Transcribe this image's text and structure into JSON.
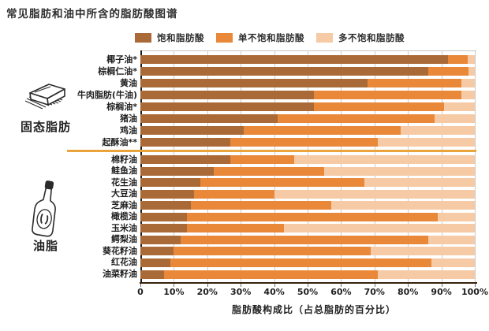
{
  "chart_data": {
    "type": "bar",
    "orientation": "horizontal",
    "stacked": true,
    "title": "常见脂肪和油中所含的脂肪酸图谱",
    "xlabel": "脂肪酸构成比（占总脂肪的百分比）",
    "xlim": [
      0,
      100
    ],
    "x_ticks": [
      "0",
      "10%",
      "20%",
      "30%",
      "40%",
      "50%",
      "60%",
      "70%",
      "80%",
      "90%",
      "100%"
    ],
    "grid": "vertical-gray-lines",
    "legend_position": "top",
    "series_names": [
      "饱和脂肪酸",
      "单不饱和脂肪酸",
      "多不饱和脂肪酸"
    ],
    "series_colors": [
      "#A96A38",
      "#E98838",
      "#F5CAA5"
    ],
    "divider_color": "#E9A43C",
    "groups": [
      {
        "group": "固态脂肪",
        "icon": "butter-stick-icon",
        "rows": [
          {
            "label": "椰子油*",
            "values": [
              92,
              6,
              2
            ]
          },
          {
            "label": "棕榈仁油*",
            "values": [
              86,
              12,
              2
            ]
          },
          {
            "label": "黄油",
            "values": [
              68,
              28,
              4
            ]
          },
          {
            "label": "牛肉脂肪(牛油)",
            "values": [
              52,
              44,
              4
            ]
          },
          {
            "label": "棕榈油*",
            "values": [
              52,
              39,
              9
            ]
          },
          {
            "label": "猪油",
            "values": [
              41,
              47,
              12
            ]
          },
          {
            "label": "鸡油",
            "values": [
              31,
              47,
              22
            ]
          },
          {
            "label": "起酥油**",
            "values": [
              27,
              44,
              29
            ]
          }
        ]
      },
      {
        "group": "油脂",
        "icon": "oil-bottle-icon",
        "rows": [
          {
            "label": "棉籽油",
            "values": [
              27,
              19,
              54
            ]
          },
          {
            "label": "鲑鱼油",
            "values": [
              22,
              33,
              45
            ]
          },
          {
            "label": "花生油",
            "values": [
              18,
              49,
              33
            ]
          },
          {
            "label": "大豆油",
            "values": [
              16,
              24,
              60
            ]
          },
          {
            "label": "芝麻油",
            "values": [
              15,
              42,
              43
            ]
          },
          {
            "label": "橄榄油",
            "values": [
              14,
              75,
              11
            ]
          },
          {
            "label": "玉米油",
            "values": [
              14,
              29,
              57
            ]
          },
          {
            "label": "鳄梨油",
            "values": [
              12,
              74,
              14
            ]
          },
          {
            "label": "葵花籽油",
            "values": [
              10,
              59,
              31
            ]
          },
          {
            "label": "红花油",
            "values": [
              9,
              78,
              13
            ]
          },
          {
            "label": "油菜籽油",
            "values": [
              7,
              64,
              29
            ]
          }
        ]
      }
    ]
  }
}
